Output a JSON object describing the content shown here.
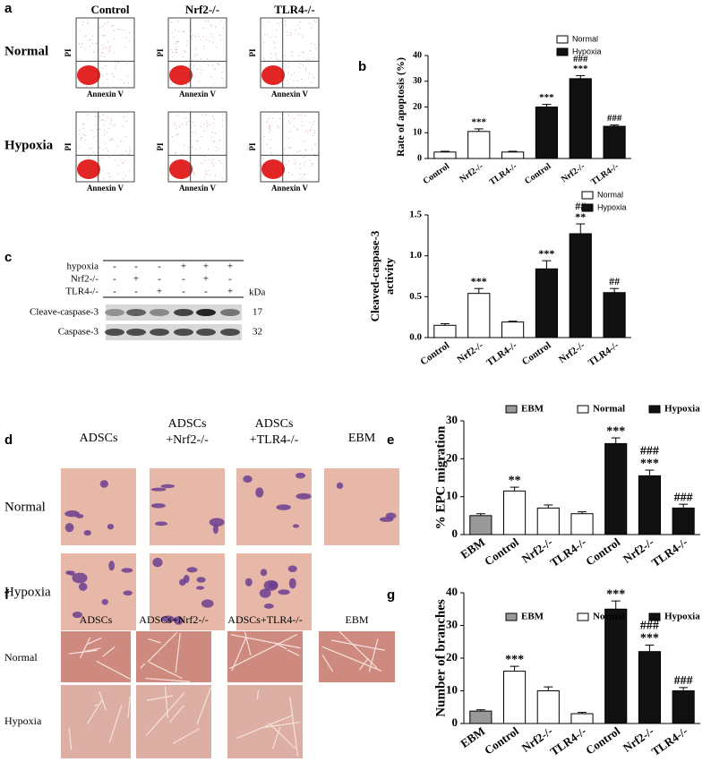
{
  "panel_labels": [
    "a",
    "b",
    "c",
    "d",
    "e",
    "f",
    "g"
  ],
  "flow_cytometry": {
    "columns": [
      "Control",
      "Nrf2-/-",
      "TLR4-/-"
    ],
    "rows": [
      "Normal",
      "Hypoxia"
    ],
    "y_axis": "PI",
    "x_axis": "Annexin V"
  },
  "western_blot": {
    "conditions": [
      {
        "label": "hypoxia",
        "signs": [
          "-",
          "-",
          "-",
          "+",
          "+",
          "+"
        ]
      },
      {
        "label": "Nrf2-/-",
        "signs": [
          "-",
          "+",
          "-",
          "-",
          "+",
          "-"
        ]
      },
      {
        "label": "TLR4-/-",
        "signs": [
          "-",
          "-",
          "+",
          "-",
          "-",
          "+"
        ]
      }
    ],
    "unit": "kDa",
    "bands": [
      {
        "label": "Cleave-caspase-3",
        "kda": 17
      },
      {
        "label": "Caspase-3",
        "kda": 32
      }
    ]
  },
  "transwell": {
    "columns": [
      [
        "ADSCs"
      ],
      [
        "ADSCs",
        "+Nrf2-/-"
      ],
      [
        "ADSCs",
        "+TLR4-/-"
      ],
      [
        "EBM"
      ]
    ],
    "rows": [
      "Normal",
      "Hypoxia"
    ]
  },
  "tube_formation": {
    "columns": [
      "ADSCs",
      "ADSCs+Nrf2-/-",
      "ADSCs+TLR4-/-",
      "EBM"
    ],
    "rows": [
      "Normal",
      "Hypoxia"
    ]
  },
  "chart_data": [
    {
      "type": "bar",
      "ylabel": "Rate of apoptosis (%)",
      "categories": [
        "Control",
        "Nrf2-/-",
        "TLR4-/-",
        "Control",
        "Nrf2-/-",
        "TLR4-/-"
      ],
      "series": [
        {
          "name": "Normal",
          "color": "#ffffff",
          "values": [
            2.5,
            10.5,
            2.5,
            null,
            null,
            null
          ],
          "errors": [
            0.3,
            1,
            0.3,
            null,
            null,
            null
          ]
        },
        {
          "name": "Hypoxia",
          "color": "#111111",
          "values": [
            null,
            null,
            null,
            20,
            31,
            12.5
          ],
          "errors": [
            null,
            null,
            null,
            1,
            1.2,
            0.5
          ]
        }
      ],
      "annotations": [
        [],
        [
          "***"
        ],
        [],
        [
          "***"
        ],
        [
          "###",
          "***"
        ],
        [
          "###"
        ]
      ],
      "ylim": [
        0,
        40
      ],
      "yticks": [
        0,
        10,
        20,
        30,
        40
      ],
      "legend": "top-right"
    },
    {
      "type": "bar",
      "ylabel": [
        "Cleaved-caspase-3",
        "activity"
      ],
      "categories": [
        "Control",
        "Nrf2-/-",
        "TLR4-/-",
        "Control",
        "Nrf2-/-",
        "TLR4-/-"
      ],
      "series": [
        {
          "name": "Normal",
          "color": "#ffffff",
          "values": [
            0.15,
            0.54,
            0.19,
            null,
            null,
            null
          ],
          "errors": [
            0.02,
            0.06,
            0.01,
            null,
            null,
            null
          ]
        },
        {
          "name": "Hypoxia",
          "color": "#111111",
          "values": [
            null,
            null,
            null,
            0.84,
            1.27,
            0.55
          ],
          "errors": [
            null,
            null,
            null,
            0.1,
            0.12,
            0.05
          ]
        }
      ],
      "annotations": [
        [],
        [
          "***"
        ],
        [],
        [
          "***"
        ],
        [
          "##",
          "**"
        ],
        [
          "##"
        ]
      ],
      "ylim": [
        0,
        1.5
      ],
      "yticks": [
        {
          "value": 0,
          "label": "0.0"
        },
        0.5,
        {
          "value": 1,
          "label": "1.0"
        },
        1.5
      ],
      "legend": "top-right"
    },
    {
      "type": "bar",
      "ylabel": "% EPC migration",
      "categories": [
        "EBM",
        "Control",
        "Nrf2-/-",
        "TLR4-/-",
        "Control",
        "Nrf2-/-",
        "TLR4-/-"
      ],
      "series": [
        {
          "name": "EBM",
          "color": "#999999",
          "values": [
            5,
            null,
            null,
            null,
            null,
            null,
            null
          ],
          "errors": [
            0.5,
            null,
            null,
            null,
            null,
            null,
            null
          ]
        },
        {
          "name": "Normal",
          "color": "#ffffff",
          "values": [
            null,
            11.5,
            7,
            5.5,
            null,
            null,
            null
          ],
          "errors": [
            null,
            1,
            0.8,
            0.5,
            null,
            null,
            null
          ]
        },
        {
          "name": "Hypoxia",
          "color": "#111111",
          "values": [
            null,
            null,
            null,
            null,
            24,
            15.5,
            7
          ],
          "errors": [
            null,
            null,
            null,
            null,
            1.5,
            1.5,
            1
          ]
        }
      ],
      "annotations": [
        [],
        [
          "**"
        ],
        [],
        [],
        [
          "***"
        ],
        [
          "###",
          "***"
        ],
        [
          "###"
        ]
      ],
      "ylim": [
        0,
        30
      ],
      "yticks": [
        0,
        10,
        20,
        30
      ],
      "legend": "top"
    },
    {
      "type": "bar",
      "ylabel": "Number of branches",
      "categories": [
        "EBM",
        "Control",
        "Nrf2-/-",
        "TLR4-/-",
        "Control",
        "Nrf2-/-",
        "TLR4-/-"
      ],
      "series": [
        {
          "name": "EBM",
          "color": "#999999",
          "values": [
            3.8,
            null,
            null,
            null,
            null,
            null,
            null
          ],
          "errors": [
            0.4,
            null,
            null,
            null,
            null,
            null,
            null
          ]
        },
        {
          "name": "Normal",
          "color": "#ffffff",
          "values": [
            null,
            16,
            10,
            3,
            null,
            null,
            null
          ],
          "errors": [
            null,
            1.5,
            1.2,
            0.4,
            null,
            null,
            null
          ]
        },
        {
          "name": "Hypoxia",
          "color": "#111111",
          "values": [
            null,
            null,
            null,
            null,
            35,
            22,
            10
          ],
          "errors": [
            null,
            null,
            null,
            null,
            2.5,
            2,
            1
          ]
        }
      ],
      "annotations": [
        [],
        [
          "***"
        ],
        [],
        [],
        [
          "***"
        ],
        [
          "###",
          "***"
        ],
        [
          "###"
        ]
      ],
      "ylim": [
        0,
        40
      ],
      "yticks": [
        0,
        10,
        20,
        30,
        40
      ],
      "legend": "top"
    }
  ]
}
